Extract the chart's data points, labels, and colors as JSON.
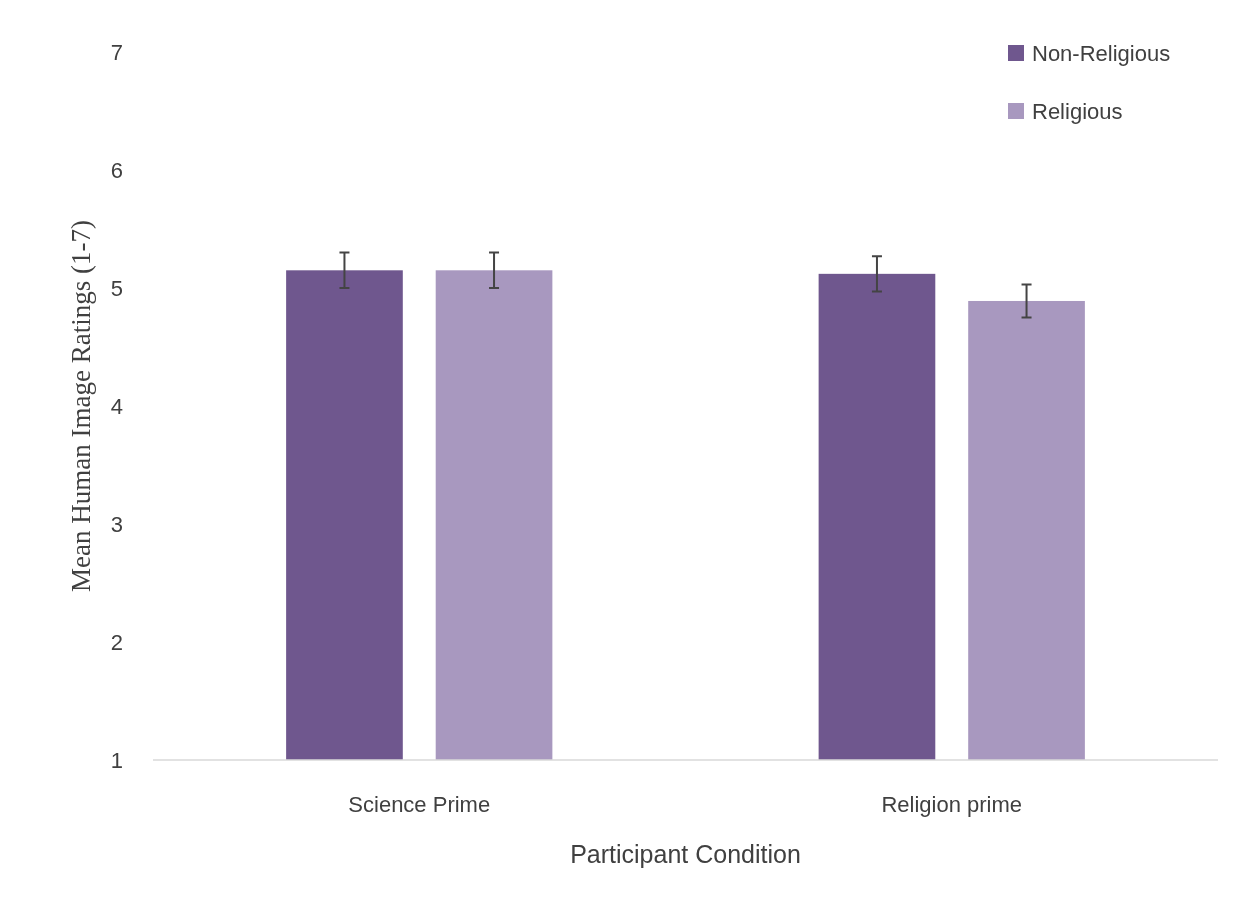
{
  "chart_data": {
    "type": "bar",
    "xlabel": "Participant Condition",
    "ylabel": "Mean Human Image Ratings (1-7)",
    "categories": [
      "Science Prime",
      "Religion prime"
    ],
    "series": [
      {
        "name": "Non-Religious",
        "color": "#6f578e",
        "values": [
          5.15,
          5.12
        ],
        "errors": [
          0.15,
          0.15
        ]
      },
      {
        "name": "Religious",
        "color": "#a898bf",
        "values": [
          5.15,
          4.89
        ],
        "errors": [
          0.15,
          0.14
        ]
      }
    ],
    "ylim": [
      1,
      7
    ],
    "yticks": [
      1,
      2,
      3,
      4,
      5,
      6,
      7
    ],
    "grid": false,
    "legend": "top right"
  }
}
